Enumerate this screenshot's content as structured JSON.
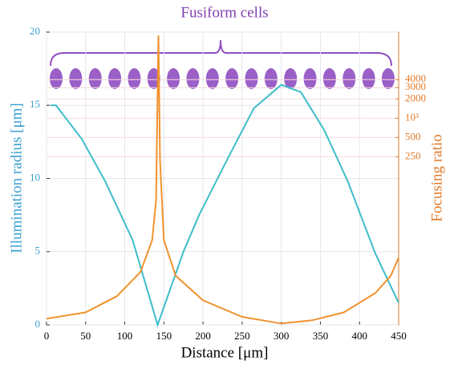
{
  "chart_data": {
    "type": "line",
    "annotation": "Fusiform cells",
    "xlabel": "Distance [μm]",
    "ylabel": "Illumination radius [μm]",
    "y2label": "Focusing ratio",
    "xlim": [
      0,
      450
    ],
    "xticks": [
      0,
      50,
      100,
      150,
      200,
      250,
      300,
      350,
      400,
      450
    ],
    "ylim": [
      0,
      20
    ],
    "yticks": [
      0,
      5,
      10,
      15,
      20
    ],
    "y2lim": [
      0.6,
      22000
    ],
    "y2scale": "log",
    "y2ticks": [
      250,
      500,
      {
        "value": 1000,
        "label": "10³"
      },
      2000,
      3000,
      4000
    ],
    "grid": true,
    "ycolor": "#3a9fd0",
    "y2color": "#e07a2a",
    "series": [
      {
        "color": "#3dbdc9",
        "axis": "y",
        "x": [
          5,
          12,
          45,
          75,
          110,
          142,
          175,
          195,
          230,
          265,
          300,
          325,
          355,
          385,
          420,
          450
        ],
        "values": [
          15,
          15,
          12.7,
          9.8,
          5.8,
          0,
          5,
          7.5,
          11.2,
          14.8,
          16.4,
          15.9,
          13.3,
          9.8,
          4.9,
          1.5
        ]
      },
      {
        "color": "#f0922e",
        "axis": "y2",
        "x": [
          0,
          50,
          90,
          120,
          135,
          140,
          143,
          145,
          150,
          165,
          200,
          250,
          300,
          340,
          380,
          420,
          440,
          450
        ],
        "values": [
          0.75,
          0.94,
          1.68,
          4,
          12.6,
          53,
          19500,
          224,
          12.6,
          3.5,
          1.45,
          0.8,
          0.63,
          0.71,
          0.94,
          1.87,
          3.5,
          6.7
        ]
      }
    ]
  }
}
